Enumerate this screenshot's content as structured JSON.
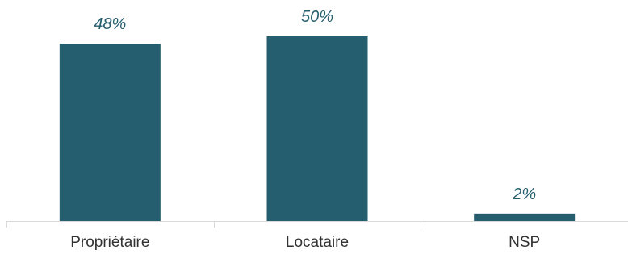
{
  "chart_data": {
    "type": "bar",
    "categories": [
      "Propriétaire",
      "Locataire",
      "NSP"
    ],
    "values": [
      48,
      50,
      2
    ],
    "data_labels": [
      "48%",
      "50%",
      "2%"
    ],
    "unit": "%",
    "title": "",
    "xlabel": "",
    "ylabel": "",
    "ylim": [
      0,
      50
    ],
    "grid": false,
    "legend": "none",
    "bar_color": "#255F6F"
  }
}
